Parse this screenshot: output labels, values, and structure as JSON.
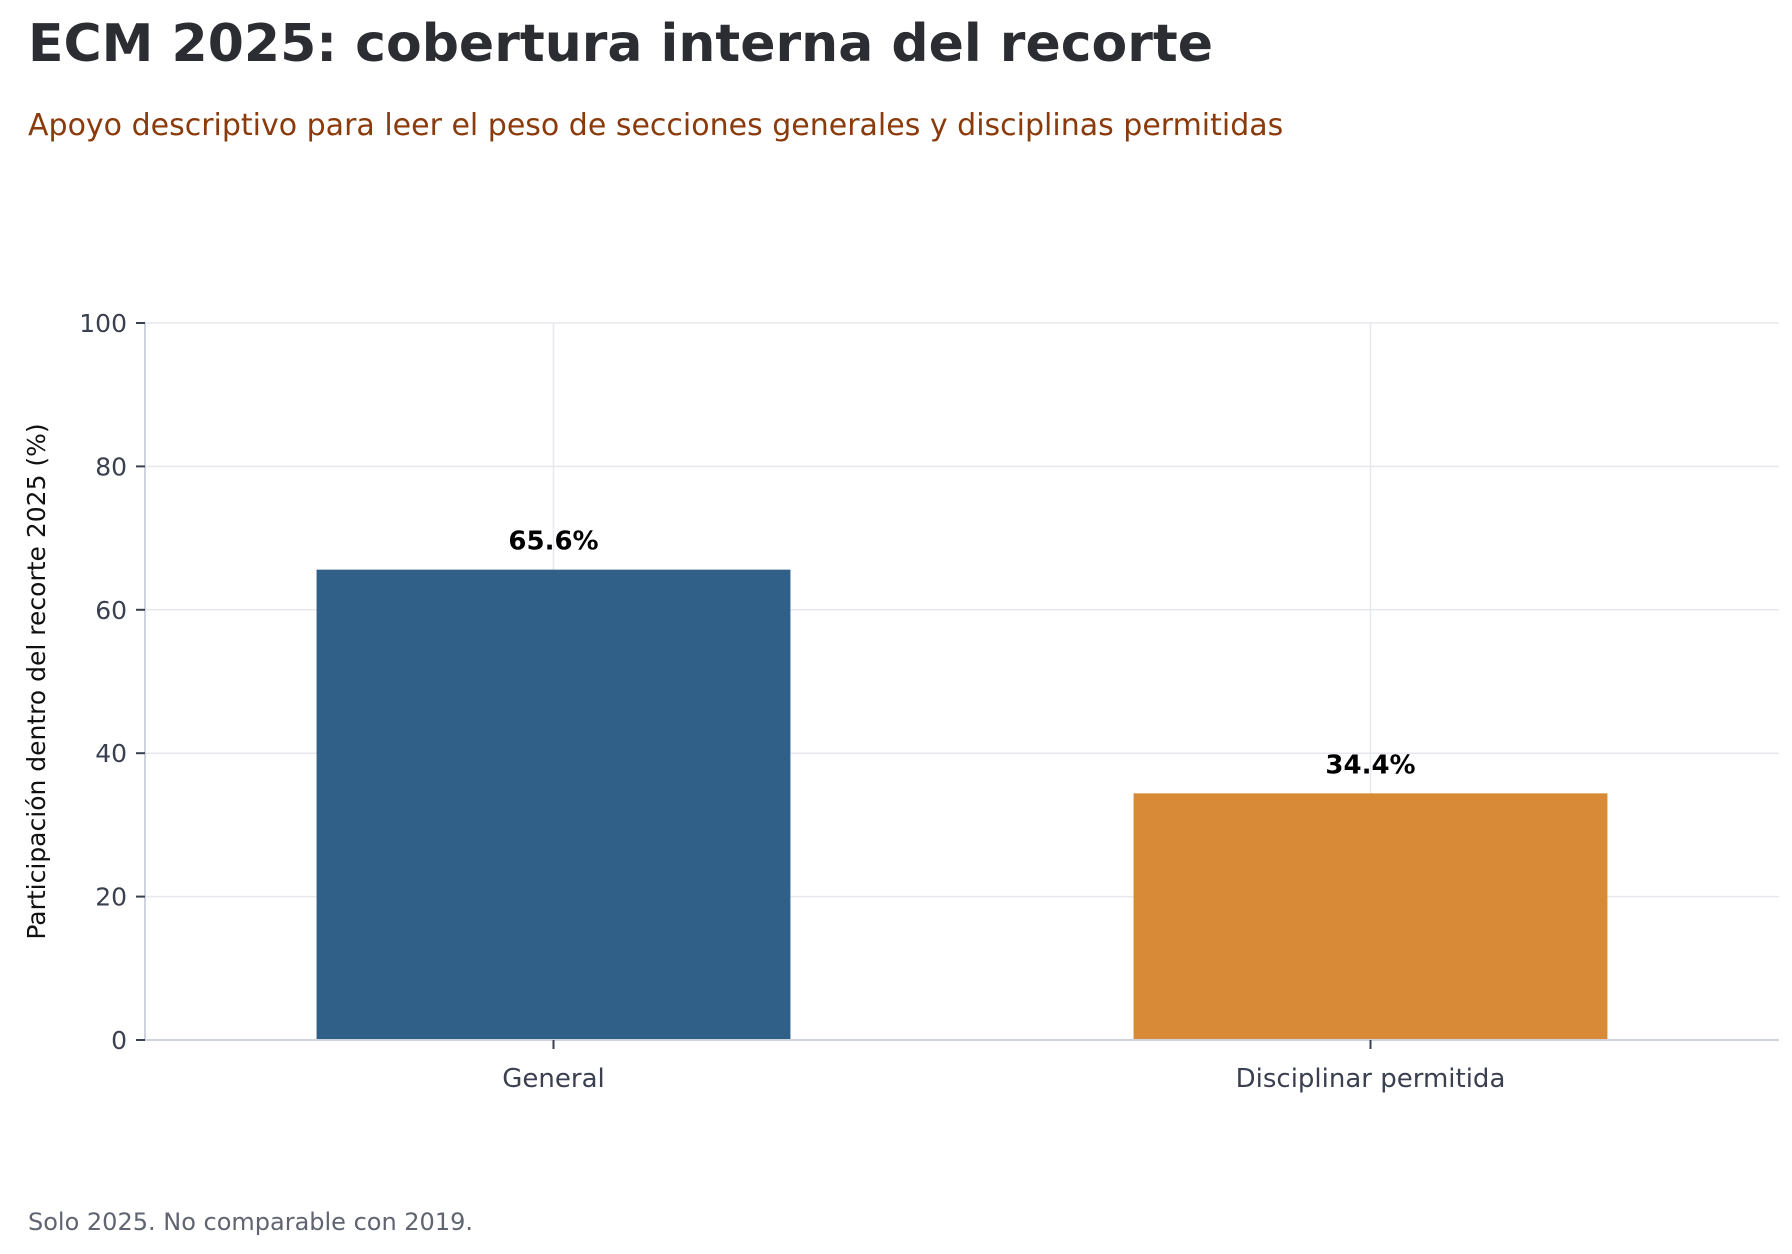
{
  "chart_data": {
    "type": "bar",
    "title": "ECM 2025: cobertura interna del recorte",
    "subtitle": "Apoyo descriptivo para leer el peso de secciones generales y disciplinas permitidas",
    "xlabel": "",
    "ylabel": "Participación dentro del recorte 2025 (%)",
    "categories": [
      "General",
      "Disciplinar permitida"
    ],
    "values": [
      65.6,
      34.4
    ],
    "data_labels": [
      "65.6%",
      "34.4%"
    ],
    "colors": [
      "#306087",
      "#d98a37"
    ],
    "ylim": [
      0,
      100
    ],
    "yticks": [
      0,
      20,
      40,
      60,
      80,
      100
    ],
    "grid": true,
    "footnote": "Solo 2025. No comparable con 2019."
  }
}
